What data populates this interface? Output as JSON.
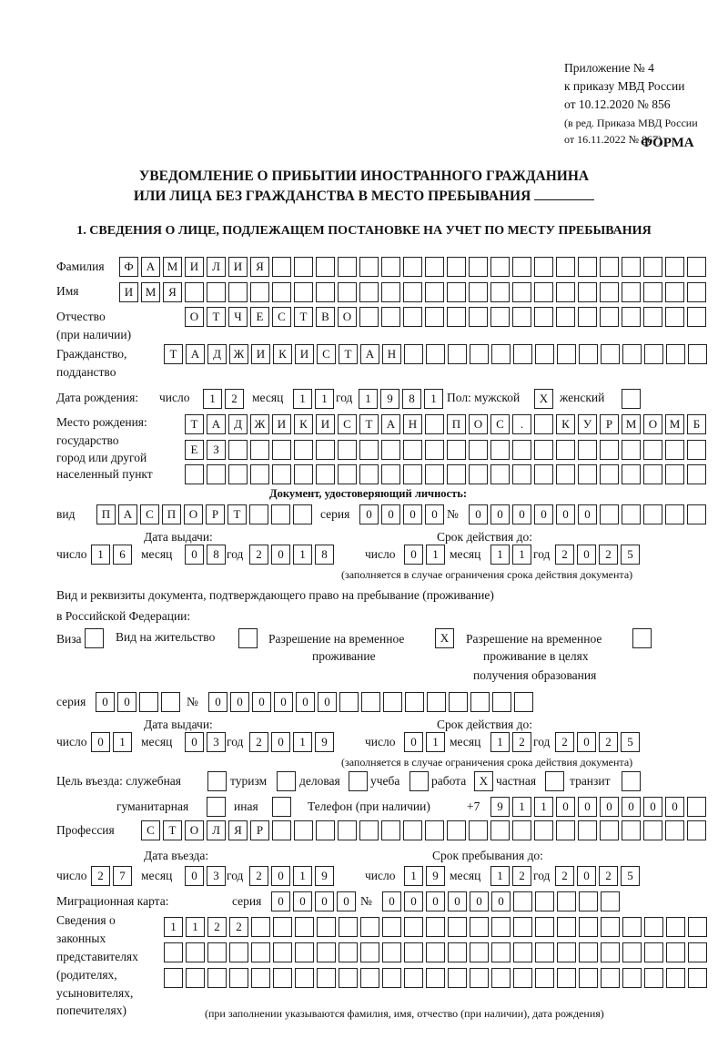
{
  "header": {
    "appendix": [
      "Приложение № 4",
      "к приказу МВД России",
      "от 10.12.2020 № 856"
    ],
    "edition": [
      "(в ред. Приказа МВД России",
      "от 16.11.2022 № 867)"
    ],
    "form_label": "ФОРМА",
    "title_line1": "УВЕДОМЛЕНИЕ О ПРИБЫТИИ ИНОСТРАННОГО ГРАЖДАНИНА",
    "title_line2": "ИЛИ ЛИЦА БЕЗ ГРАЖДАНСТВА В МЕСТО ПРЕБЫВАНИЯ",
    "section1": "1. СВЕДЕНИЯ О ЛИЦЕ, ПОДЛЕЖАЩЕМ ПОСТАНОВКЕ НА УЧЕТ ПО МЕСТУ ПРЕБЫВАНИЯ"
  },
  "labels": {
    "surname": "Фамилия",
    "name": "Имя",
    "patronymic": "Отчество",
    "patronymic_note": "(при наличии)",
    "citizenship": "Гражданство,",
    "citizenship2": "подданство",
    "birth_date": "Дата рождения:",
    "day": "число",
    "month": "месяц",
    "year": "год",
    "sex_male": "Пол: мужской",
    "sex_female": "женский",
    "birthplace": [
      "Место рождения:",
      "государство",
      "город или другой",
      "населенный пункт"
    ],
    "id_doc": "Документ, удостоверяющий личность:",
    "kind": "вид",
    "series": "серия",
    "number": "№",
    "issue_date": "Дата выдачи:",
    "valid_until": "Срок действия до:",
    "validity_note": "(заполняется в случае ограничения срока действия документа)",
    "permit_doc": "Вид и реквизиты документа, подтверждающего право на пребывание (проживание)",
    "permit_doc2": "в Российской Федерации:",
    "visa": "Виза",
    "residence": "Вид на жительство",
    "temp_residence": "Разрешение на временное",
    "temp_residence2": "проживание",
    "edu_residence": "Разрешение на временное",
    "edu_residence2": "проживание в целях",
    "edu_residence3": "получения образования",
    "purpose": "Цель въезда: служебная",
    "tourism": "туризм",
    "business": "деловая",
    "study": "учеба",
    "work": "работа",
    "private": "частная",
    "transit": "транзит",
    "humanitarian": "гуманитарная",
    "other": "иная",
    "phone": "Телефон (при наличии)",
    "phone_prefix": "+7",
    "profession": "Профессия",
    "entry_date": "Дата въезда:",
    "stay_until": "Срок пребывания до:",
    "migration_card": "Миграционная карта:",
    "reps": [
      "Сведения о",
      "законных",
      "представителях",
      "(родителях,",
      "усыновителях,",
      "попечителях)"
    ],
    "reps_note": "(при заполнении указываются фамилия, имя, отчество (при наличии), дата рождения)"
  },
  "fields": {
    "surname": [
      "Ф",
      "А",
      "М",
      "И",
      "Л",
      "И",
      "Я"
    ],
    "name": [
      "И",
      "М",
      "Я"
    ],
    "patronymic": [
      "О",
      "Т",
      "Ч",
      "Е",
      "С",
      "Т",
      "В",
      "О"
    ],
    "citizenship": [
      "Т",
      "А",
      "Д",
      "Ж",
      "И",
      "К",
      "И",
      "С",
      "Т",
      "А",
      "Н"
    ],
    "birth_day": [
      "1",
      "2"
    ],
    "birth_month": [
      "1",
      "1"
    ],
    "birth_year": [
      "1",
      "9",
      "8",
      "1"
    ],
    "sex_male": [
      "X"
    ],
    "sex_female": [
      ""
    ],
    "birthplace1": [
      "Т",
      "А",
      "Д",
      "Ж",
      "И",
      "К",
      "И",
      "С",
      "Т",
      "А",
      "Н",
      "",
      "П",
      "О",
      "С",
      ".",
      "",
      "К",
      "У",
      "Р",
      "М",
      "О",
      "М",
      "Б"
    ],
    "birthplace2": [
      "Е",
      "З"
    ],
    "birthplace3": [],
    "doc_kind": [
      "П",
      "А",
      "С",
      "П",
      "О",
      "Р",
      "Т"
    ],
    "doc_series": [
      "0",
      "0",
      "0",
      "0"
    ],
    "doc_number": [
      "0",
      "0",
      "0",
      "0",
      "0",
      "0"
    ],
    "doc_issue_day": [
      "1",
      "6"
    ],
    "doc_issue_month": [
      "0",
      "8"
    ],
    "doc_issue_year": [
      "2",
      "0",
      "1",
      "8"
    ],
    "doc_valid_day": [
      "0",
      "1"
    ],
    "doc_valid_month": [
      "1",
      "1"
    ],
    "doc_valid_year": [
      "2",
      "0",
      "2",
      "5"
    ],
    "visa": [
      ""
    ],
    "residence": [
      ""
    ],
    "temp_residence": [
      "X"
    ],
    "edu_residence": [
      ""
    ],
    "permit_series": [
      "0",
      "0"
    ],
    "permit_number": [
      "0",
      "0",
      "0",
      "0",
      "0",
      "0"
    ],
    "permit_issue_day": [
      "0",
      "1"
    ],
    "permit_issue_month": [
      "0",
      "3"
    ],
    "permit_issue_year": [
      "2",
      "0",
      "1",
      "9"
    ],
    "permit_valid_day": [
      "0",
      "1"
    ],
    "permit_valid_month": [
      "1",
      "2"
    ],
    "permit_valid_year": [
      "2",
      "0",
      "2",
      "5"
    ],
    "purpose_official": [
      ""
    ],
    "purpose_tourism": [
      ""
    ],
    "purpose_business": [
      ""
    ],
    "purpose_study": [
      ""
    ],
    "purpose_work": [
      "X"
    ],
    "purpose_private": [
      ""
    ],
    "purpose_transit": [
      ""
    ],
    "purpose_humanitarian": [
      ""
    ],
    "purpose_other": [
      ""
    ],
    "phone": [
      "9",
      "1",
      "1",
      "0",
      "0",
      "0",
      "0",
      "0",
      "0"
    ],
    "profession": [
      "С",
      "Т",
      "О",
      "Л",
      "Я",
      "Р"
    ],
    "entry_day": [
      "2",
      "7"
    ],
    "entry_month": [
      "0",
      "3"
    ],
    "entry_year": [
      "2",
      "0",
      "1",
      "9"
    ],
    "stay_day": [
      "1",
      "9"
    ],
    "stay_month": [
      "1",
      "2"
    ],
    "stay_year": [
      "2",
      "0",
      "2",
      "5"
    ],
    "migration_series": [
      "0",
      "0",
      "0",
      "0"
    ],
    "migration_number": [
      "0",
      "0",
      "0",
      "0",
      "0",
      "0"
    ],
    "reps1": [
      "1",
      "1",
      "2",
      "2"
    ],
    "reps2": [],
    "reps3": []
  }
}
